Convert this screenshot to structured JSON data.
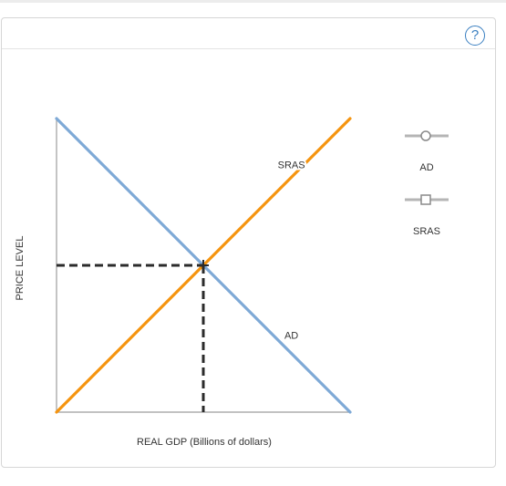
{
  "help": {
    "label": "?"
  },
  "chart_data": {
    "type": "line",
    "xlabel": "REAL GDP (Billions of dollars)",
    "ylabel": "PRICE LEVEL",
    "series": [
      {
        "name": "AD",
        "x": [
          0,
          10
        ],
        "y": [
          10,
          0
        ],
        "color": "#7ea9d6"
      },
      {
        "name": "SRAS",
        "x": [
          0,
          10
        ],
        "y": [
          0,
          10
        ],
        "color": "#f5940f"
      }
    ],
    "curve_labels": {
      "ad": "AD",
      "sras": "SRAS"
    },
    "equilibrium": {
      "x": 5,
      "y": 5,
      "style": "dashed",
      "color": "#2b2b2b"
    },
    "xlim": [
      0,
      10
    ],
    "ylim": [
      0,
      10
    ],
    "legend": {
      "placement": "right",
      "items": [
        {
          "label": "AD",
          "marker": "circle"
        },
        {
          "label": "SRAS",
          "marker": "square"
        }
      ]
    }
  }
}
